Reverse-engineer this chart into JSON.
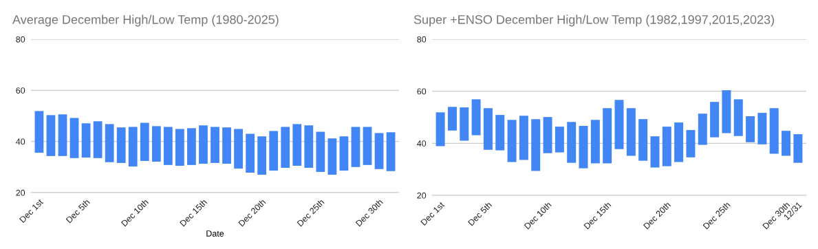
{
  "chart_data": [
    {
      "type": "bar",
      "title": "Average December High/Low Temp (1980-2025)",
      "xlabel": "Date",
      "categories": [
        "Dec 1st",
        null,
        null,
        null,
        "Dec 5th",
        null,
        null,
        null,
        null,
        "Dec 10th",
        null,
        null,
        null,
        null,
        "Dec 15th",
        null,
        null,
        null,
        null,
        "Dec 20th",
        null,
        null,
        null,
        null,
        "Dec 25th",
        null,
        null,
        null,
        null,
        "Dec 30th",
        null
      ],
      "base": [
        35.6,
        34.3,
        34.3,
        33.5,
        33.7,
        33.5,
        31.9,
        31.6,
        30.2,
        32.4,
        32.1,
        30.8,
        30.5,
        30.8,
        31.3,
        31.6,
        31.3,
        29.4,
        27.8,
        27.0,
        28.6,
        29.7,
        30.5,
        29.7,
        28.1,
        27.0,
        28.6,
        30.0,
        30.8,
        29.2,
        28.4
      ],
      "values": [
        16.3,
        16.0,
        16.3,
        15.7,
        13.4,
        14.4,
        14.9,
        13.9,
        15.5,
        14.9,
        13.9,
        14.9,
        14.4,
        14.4,
        15.0,
        14.1,
        14.2,
        15.5,
        15.2,
        15.0,
        15.5,
        16.0,
        16.3,
        16.6,
        15.7,
        14.2,
        13.4,
        15.7,
        14.9,
        14.1,
        15.2
      ],
      "color": "#4285f4",
      "ylim": [
        20,
        80
      ],
      "yticks": [
        20,
        40,
        60,
        80
      ],
      "grid": "y"
    },
    {
      "type": "bar",
      "title": "Super +ENSO December High/Low Temp (1982,1997,2015,2023)",
      "categories": [
        "Dec 1st",
        null,
        null,
        null,
        "Dec 5th",
        null,
        null,
        null,
        null,
        "Dec 10th",
        null,
        null,
        null,
        null,
        "Dec 15th",
        null,
        null,
        null,
        null,
        "Dec 20th",
        null,
        null,
        null,
        null,
        "Dec 25th",
        null,
        null,
        null,
        null,
        "Dec 30th",
        "12/31"
      ],
      "base": [
        38.9,
        44.9,
        41.0,
        43.1,
        37.5,
        37.3,
        32.8,
        33.6,
        29.4,
        36.2,
        36.5,
        32.5,
        30.4,
        32.3,
        32.3,
        37.8,
        35.2,
        33.3,
        30.7,
        31.2,
        32.8,
        34.6,
        39.4,
        42.3,
        43.9,
        42.8,
        40.4,
        39.6,
        36.0,
        35.2,
        32.5
      ],
      "values": [
        13.0,
        9.1,
        12.8,
        13.8,
        16.0,
        13.6,
        16.2,
        17.0,
        19.9,
        13.9,
        9.9,
        15.7,
        16.3,
        16.7,
        21.2,
        18.9,
        18.3,
        16.0,
        12.0,
        15.2,
        15.2,
        10.5,
        12.0,
        13.6,
        16.5,
        14.1,
        10.0,
        12.1,
        17.5,
        9.6,
        11.0
      ],
      "color": "#4285f4",
      "ylim": [
        20,
        80
      ],
      "yticks": [
        20,
        40,
        60,
        80
      ],
      "grid": "y"
    }
  ]
}
